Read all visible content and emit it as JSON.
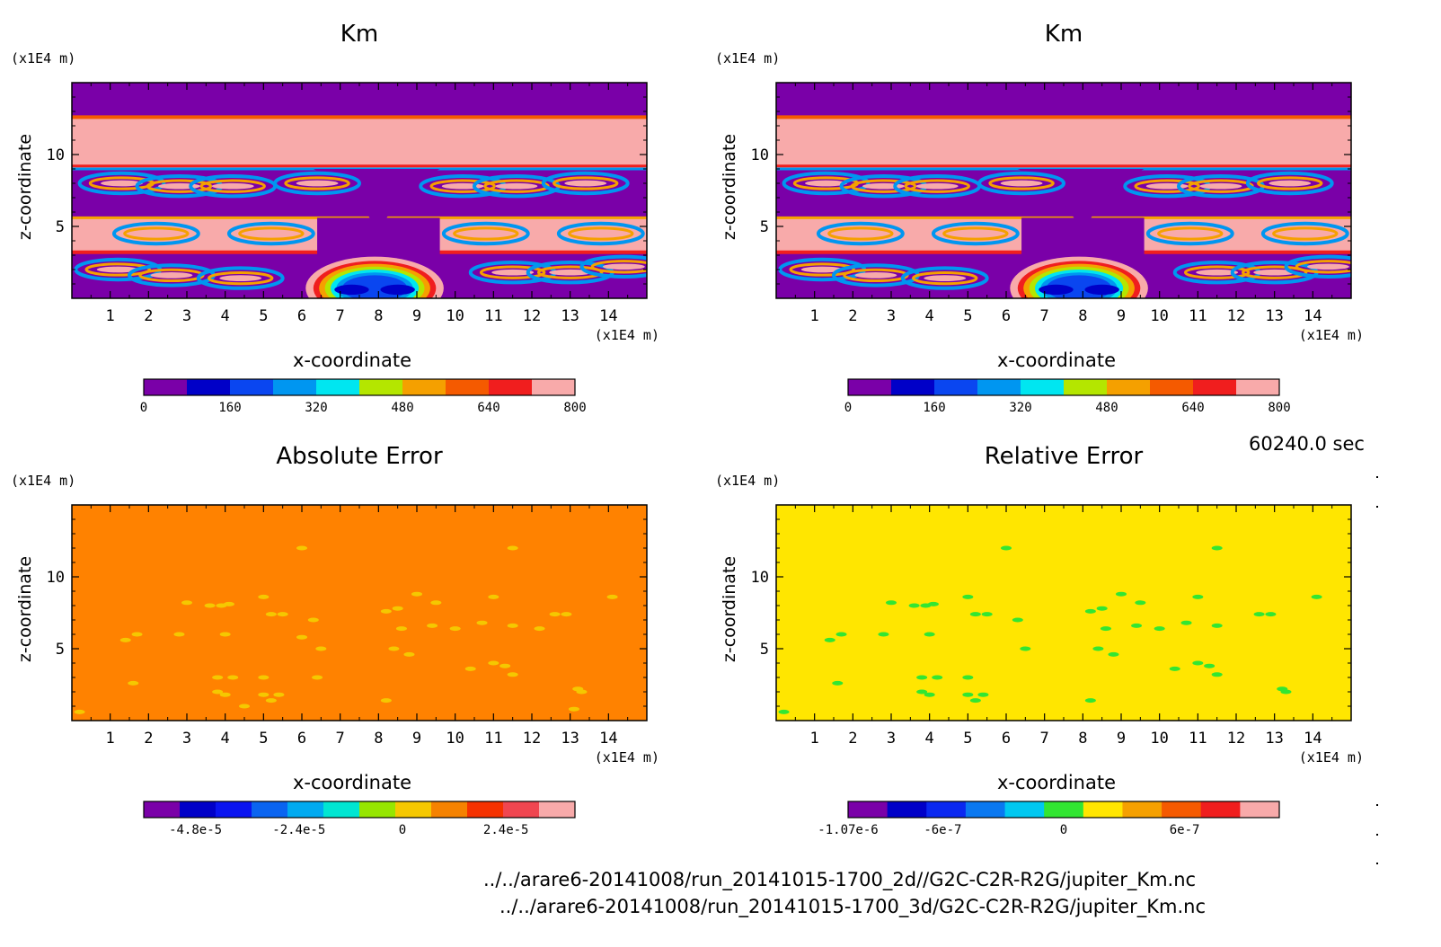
{
  "timestamp": "60240.0 sec",
  "files": [
    "../../arare6-20141008/run_20141015-1700_2d//G2C-C2R-R2G/jupiter_Km.nc",
    "../../arare6-20141008/run_20141015-1700_3d/G2C-C2R-R2G/jupiter_Km.nc"
  ],
  "chart_data": [
    {
      "type": "heatmap",
      "title": "Km",
      "xlabel": "x-coordinate",
      "ylabel": "z-coordinate",
      "x_unit": "(x1E4 m)",
      "y_unit": "(x1E4 m)",
      "xlim": [
        0,
        15
      ],
      "ylim": [
        0,
        15
      ],
      "x_ticks": [
        1,
        2,
        3,
        4,
        5,
        6,
        7,
        8,
        9,
        10,
        11,
        12,
        13,
        14
      ],
      "y_ticks": [
        5,
        10
      ],
      "colorbar": {
        "min": 0,
        "max": 800,
        "tick_values": [
          0,
          160,
          320,
          480,
          640,
          800
        ],
        "tick_labels": [
          "0",
          "160",
          "320",
          "480",
          "640",
          "800"
        ],
        "colors": [
          "#7a00a8",
          "#0000c8",
          "#0a46f0",
          "#0096f0",
          "#00e6f0",
          "#b4e600",
          "#f5a000",
          "#f55a00",
          "#f01e1e",
          "#f8aaaa"
        ]
      },
      "pattern": "km"
    },
    {
      "type": "heatmap",
      "title": "Km",
      "xlabel": "x-coordinate",
      "ylabel": "z-coordinate",
      "x_unit": "(x1E4 m)",
      "y_unit": "(x1E4 m)",
      "xlim": [
        0,
        15
      ],
      "ylim": [
        0,
        15
      ],
      "x_ticks": [
        1,
        2,
        3,
        4,
        5,
        6,
        7,
        8,
        9,
        10,
        11,
        12,
        13,
        14
      ],
      "y_ticks": [
        5,
        10
      ],
      "colorbar": {
        "min": 0,
        "max": 800,
        "tick_values": [
          0,
          160,
          320,
          480,
          640,
          800
        ],
        "tick_labels": [
          "0",
          "160",
          "320",
          "480",
          "640",
          "800"
        ],
        "colors": [
          "#7a00a8",
          "#0000c8",
          "#0a46f0",
          "#0096f0",
          "#00e6f0",
          "#b4e600",
          "#f5a000",
          "#f55a00",
          "#f01e1e",
          "#f8aaaa"
        ]
      },
      "pattern": "km"
    },
    {
      "type": "heatmap",
      "title": "Absolute Error",
      "xlabel": "x-coordinate",
      "ylabel": "z-coordinate",
      "x_unit": "(x1E4 m)",
      "y_unit": "(x1E4 m)",
      "xlim": [
        0,
        15
      ],
      "ylim": [
        0,
        15
      ],
      "x_ticks": [
        1,
        2,
        3,
        4,
        5,
        6,
        7,
        8,
        9,
        10,
        11,
        12,
        13,
        14
      ],
      "y_ticks": [
        5,
        10
      ],
      "background_value": 0,
      "colorbar": {
        "min": -6e-05,
        "max": 4e-05,
        "tick_values": [
          -4.8e-05,
          -2.4e-05,
          0,
          2.4e-05
        ],
        "tick_labels": [
          "-4.8e-5",
          "-2.4e-5",
          "0",
          "2.4e-5"
        ],
        "colors": [
          "#7a00a8",
          "#0000c8",
          "#0a14f0",
          "#0a64f0",
          "#00aaf0",
          "#00e6d2",
          "#96e600",
          "#f5c800",
          "#f58200",
          "#f53200",
          "#f04650",
          "#f8aaaa"
        ]
      },
      "background_color": "#ff8200",
      "spot_color": "#f5c800",
      "spots": [
        [
          1.6,
          2.6
        ],
        [
          3.0,
          8.2
        ],
        [
          3.6,
          8.0
        ],
        [
          3.9,
          8.0
        ],
        [
          4.1,
          8.1
        ],
        [
          2.8,
          6.0
        ],
        [
          1.4,
          5.6
        ],
        [
          1.7,
          6.0
        ],
        [
          4.0,
          6.0
        ],
        [
          5.0,
          8.6
        ],
        [
          5.2,
          7.4
        ],
        [
          5.5,
          7.4
        ],
        [
          6.3,
          7.0
        ],
        [
          6.0,
          5.8
        ],
        [
          6.5,
          5.0
        ],
        [
          6.0,
          12.0
        ],
        [
          8.2,
          7.6
        ],
        [
          8.5,
          7.8
        ],
        [
          9.0,
          8.8
        ],
        [
          9.5,
          8.2
        ],
        [
          8.6,
          6.4
        ],
        [
          9.4,
          6.6
        ],
        [
          10.0,
          6.4
        ],
        [
          10.7,
          6.8
        ],
        [
          11.0,
          8.6
        ],
        [
          11.5,
          6.6
        ],
        [
          12.2,
          6.4
        ],
        [
          12.6,
          7.4
        ],
        [
          12.9,
          7.4
        ],
        [
          13.2,
          2.2
        ],
        [
          13.3,
          2.0
        ],
        [
          14.1,
          8.6
        ],
        [
          11.5,
          12.0
        ],
        [
          11.0,
          4.0
        ],
        [
          8.4,
          5.0
        ],
        [
          8.8,
          4.6
        ],
        [
          10.4,
          3.6
        ],
        [
          11.3,
          3.8
        ],
        [
          11.5,
          3.2
        ],
        [
          3.8,
          3.0
        ],
        [
          4.2,
          3.0
        ],
        [
          5.0,
          3.0
        ],
        [
          6.4,
          3.0
        ],
        [
          3.8,
          2.0
        ],
        [
          4.0,
          1.8
        ],
        [
          4.5,
          1.0
        ],
        [
          5.0,
          1.8
        ],
        [
          5.4,
          1.8
        ],
        [
          5.2,
          1.4
        ],
        [
          8.2,
          1.4
        ],
        [
          0.2,
          0.6
        ],
        [
          13.1,
          0.8
        ]
      ]
    },
    {
      "type": "heatmap",
      "title": "Relative Error",
      "xlabel": "x-coordinate",
      "ylabel": "z-coordinate",
      "x_unit": "(x1E4 m)",
      "y_unit": "(x1E4 m)",
      "xlim": [
        0,
        15
      ],
      "ylim": [
        0,
        15
      ],
      "x_ticks": [
        1,
        2,
        3,
        4,
        5,
        6,
        7,
        8,
        9,
        10,
        11,
        12,
        13,
        14
      ],
      "y_ticks": [
        5,
        10
      ],
      "background_value": 0,
      "colorbar": {
        "min": -1.07e-06,
        "max": 1.07e-06,
        "tick_values": [
          -1.07e-06,
          -6e-07,
          0,
          6e-07
        ],
        "tick_labels": [
          "-1.07e-6",
          "-6e-7",
          "0",
          "6e-7"
        ],
        "colors": [
          "#7a00a8",
          "#0000c8",
          "#0a28f0",
          "#0a78f0",
          "#00c8f0",
          "#32e632",
          "#ffe600",
          "#f5a000",
          "#f55a00",
          "#f01e1e",
          "#f8aaaa"
        ]
      },
      "background_color": "#ffe600",
      "spot_color": "#32e632",
      "spots": [
        [
          1.6,
          2.6
        ],
        [
          3.0,
          8.2
        ],
        [
          3.6,
          8.0
        ],
        [
          3.9,
          8.0
        ],
        [
          4.1,
          8.1
        ],
        [
          2.8,
          6.0
        ],
        [
          1.4,
          5.6
        ],
        [
          1.7,
          6.0
        ],
        [
          4.0,
          6.0
        ],
        [
          5.0,
          8.6
        ],
        [
          5.2,
          7.4
        ],
        [
          5.5,
          7.4
        ],
        [
          6.3,
          7.0
        ],
        [
          6.5,
          5.0
        ],
        [
          6.0,
          12.0
        ],
        [
          8.2,
          7.6
        ],
        [
          8.5,
          7.8
        ],
        [
          9.0,
          8.8
        ],
        [
          9.5,
          8.2
        ],
        [
          8.6,
          6.4
        ],
        [
          9.4,
          6.6
        ],
        [
          10.0,
          6.4
        ],
        [
          10.7,
          6.8
        ],
        [
          11.0,
          8.6
        ],
        [
          11.5,
          6.6
        ],
        [
          12.6,
          7.4
        ],
        [
          12.9,
          7.4
        ],
        [
          13.2,
          2.2
        ],
        [
          13.3,
          2.0
        ],
        [
          14.1,
          8.6
        ],
        [
          11.5,
          12.0
        ],
        [
          11.0,
          4.0
        ],
        [
          8.4,
          5.0
        ],
        [
          8.8,
          4.6
        ],
        [
          10.4,
          3.6
        ],
        [
          11.3,
          3.8
        ],
        [
          11.5,
          3.2
        ],
        [
          3.8,
          3.0
        ],
        [
          4.2,
          3.0
        ],
        [
          5.0,
          3.0
        ],
        [
          3.8,
          2.0
        ],
        [
          4.0,
          1.8
        ],
        [
          5.0,
          1.8
        ],
        [
          5.4,
          1.8
        ],
        [
          5.2,
          1.4
        ],
        [
          8.2,
          1.4
        ],
        [
          0.2,
          0.6
        ]
      ]
    }
  ]
}
